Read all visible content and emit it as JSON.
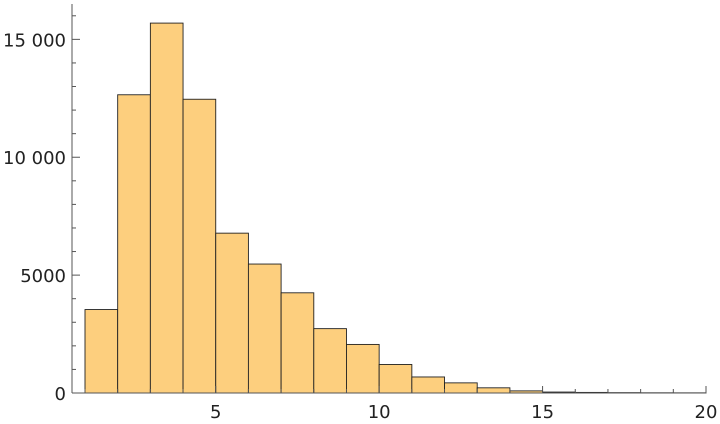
{
  "chart_data": {
    "type": "bar",
    "title": "",
    "xlabel": "",
    "ylabel": "",
    "bar_color": "#fdcf7e",
    "bar_edge_color": "#222222",
    "grid": false,
    "xlim": [
      1,
      20
    ],
    "ylim": [
      0,
      16500
    ],
    "x_ticks": [
      5,
      10,
      15,
      20
    ],
    "x_tick_labels": [
      "5",
      "10",
      "15",
      "20"
    ],
    "y_ticks": [
      0,
      5000,
      10000,
      15000
    ],
    "y_tick_labels": [
      "0",
      "5000",
      "10 000",
      "15 000"
    ],
    "bins": [
      {
        "x0": 1.0,
        "x1": 2.0,
        "value": 3540
      },
      {
        "x0": 2.0,
        "x1": 3.0,
        "value": 12650
      },
      {
        "x0": 3.0,
        "x1": 4.0,
        "value": 15690
      },
      {
        "x0": 4.0,
        "x1": 5.0,
        "value": 12460
      },
      {
        "x0": 5.0,
        "x1": 6.0,
        "value": 6780
      },
      {
        "x0": 6.0,
        "x1": 7.0,
        "value": 5470
      },
      {
        "x0": 7.0,
        "x1": 8.0,
        "value": 4250
      },
      {
        "x0": 8.0,
        "x1": 9.0,
        "value": 2730
      },
      {
        "x0": 9.0,
        "x1": 10.0,
        "value": 2060
      },
      {
        "x0": 10.0,
        "x1": 11.0,
        "value": 1210
      },
      {
        "x0": 11.0,
        "x1": 12.0,
        "value": 680
      },
      {
        "x0": 12.0,
        "x1": 13.0,
        "value": 430
      },
      {
        "x0": 13.0,
        "x1": 14.0,
        "value": 220
      },
      {
        "x0": 14.0,
        "x1": 15.0,
        "value": 90
      },
      {
        "x0": 15.0,
        "x1": 16.0,
        "value": 40
      },
      {
        "x0": 16.0,
        "x1": 17.0,
        "value": 25
      },
      {
        "x0": 17.0,
        "x1": 18.0,
        "value": 15
      },
      {
        "x0": 18.0,
        "x1": 19.0,
        "value": 10
      },
      {
        "x0": 19.0,
        "x1": 20.0,
        "value": 8
      }
    ]
  }
}
